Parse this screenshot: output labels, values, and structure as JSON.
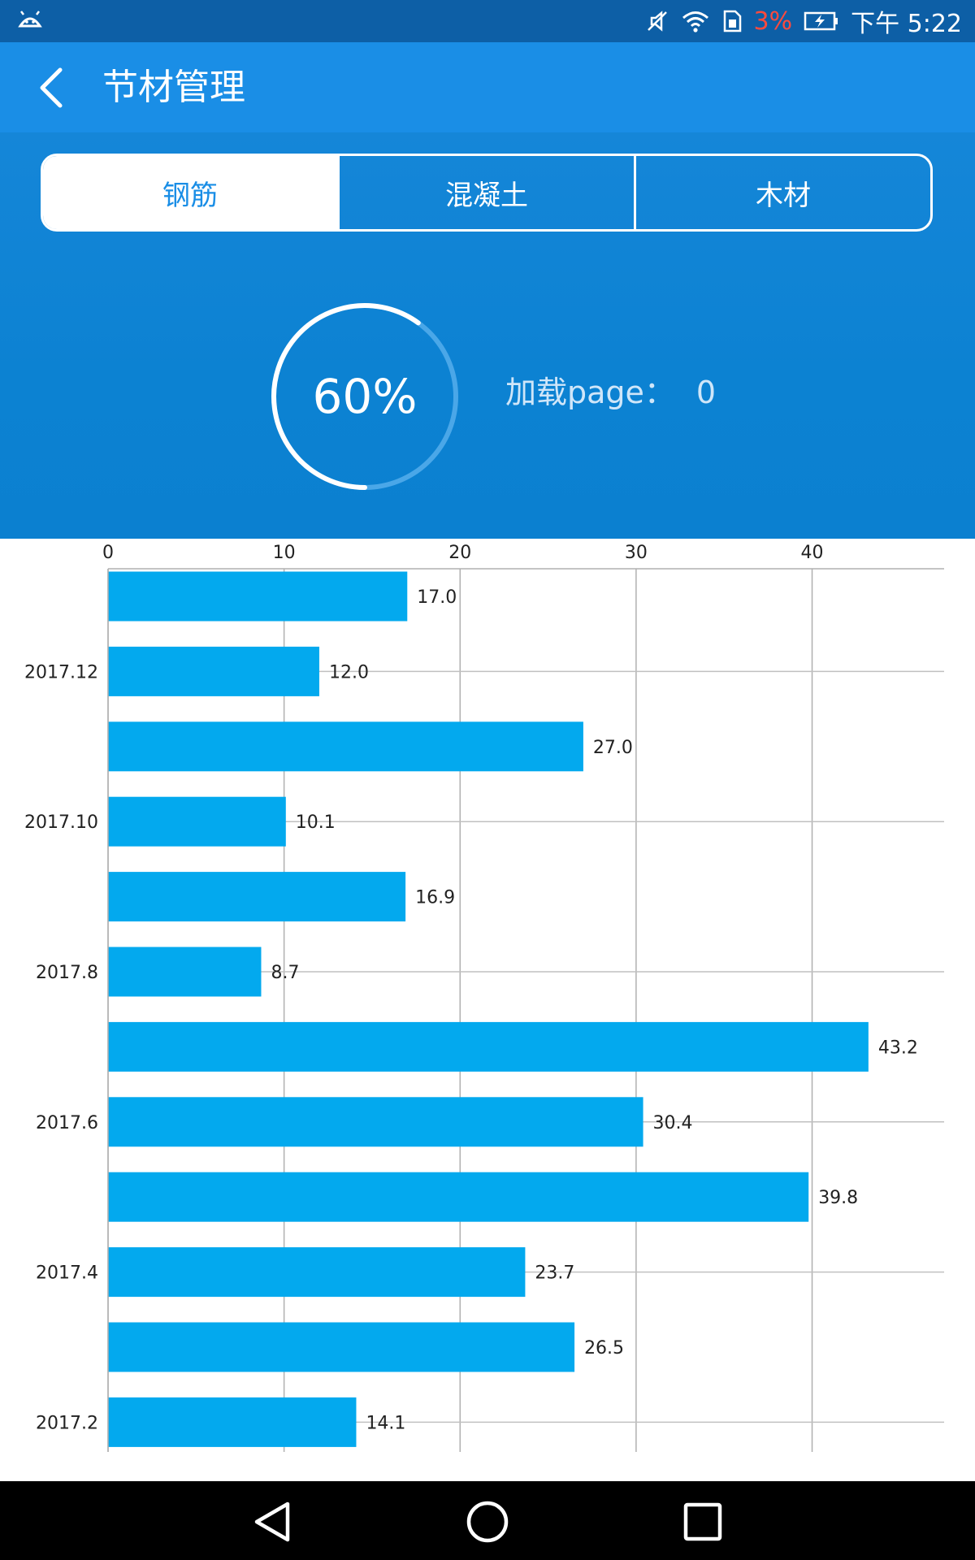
{
  "status_bar": {
    "battery_percent": "3%",
    "time": "下午 5:22",
    "icons": [
      "android-debug-icon",
      "mute-icon",
      "wifi-icon",
      "sim-icon",
      "battery-charging-icon"
    ]
  },
  "app_bar": {
    "title": "节材管理",
    "back_icon": "chevron-left-icon"
  },
  "tabs": [
    {
      "label": "钢筋",
      "active": true
    },
    {
      "label": "混凝土",
      "active": false
    },
    {
      "label": "木材",
      "active": false
    }
  ],
  "progress": {
    "value": 60,
    "label": "60%"
  },
  "load_info": {
    "label": "加载page：",
    "value": "0"
  },
  "colors": {
    "accent": "#1a8ee6",
    "bar": "#03a9ee",
    "status_bar": "#0d5fa6"
  },
  "chart_data": {
    "type": "bar",
    "orientation": "horizontal",
    "x_axis_position": "top",
    "xlim": [
      0,
      47.5
    ],
    "xticks": [
      0,
      10,
      20,
      30,
      40
    ],
    "grid": true,
    "category_labels_shown": [
      "",
      "2017.12",
      "",
      "2017.10",
      "",
      "2017.8",
      "",
      "2017.6",
      "",
      "2017.4",
      "",
      "2017.2"
    ],
    "values": [
      17.0,
      12.0,
      27.0,
      10.1,
      16.9,
      8.7,
      43.2,
      30.4,
      39.8,
      23.7,
      26.5,
      14.1
    ],
    "value_labels": [
      "17.0",
      "12.0",
      "27.0",
      "10.1",
      "16.9",
      "8.7",
      "43.2",
      "30.4",
      "39.8",
      "23.7",
      "26.5",
      "14.1"
    ]
  },
  "nav_bar": {
    "icons": [
      "back-triangle-icon",
      "home-circle-icon",
      "recents-square-icon"
    ]
  }
}
